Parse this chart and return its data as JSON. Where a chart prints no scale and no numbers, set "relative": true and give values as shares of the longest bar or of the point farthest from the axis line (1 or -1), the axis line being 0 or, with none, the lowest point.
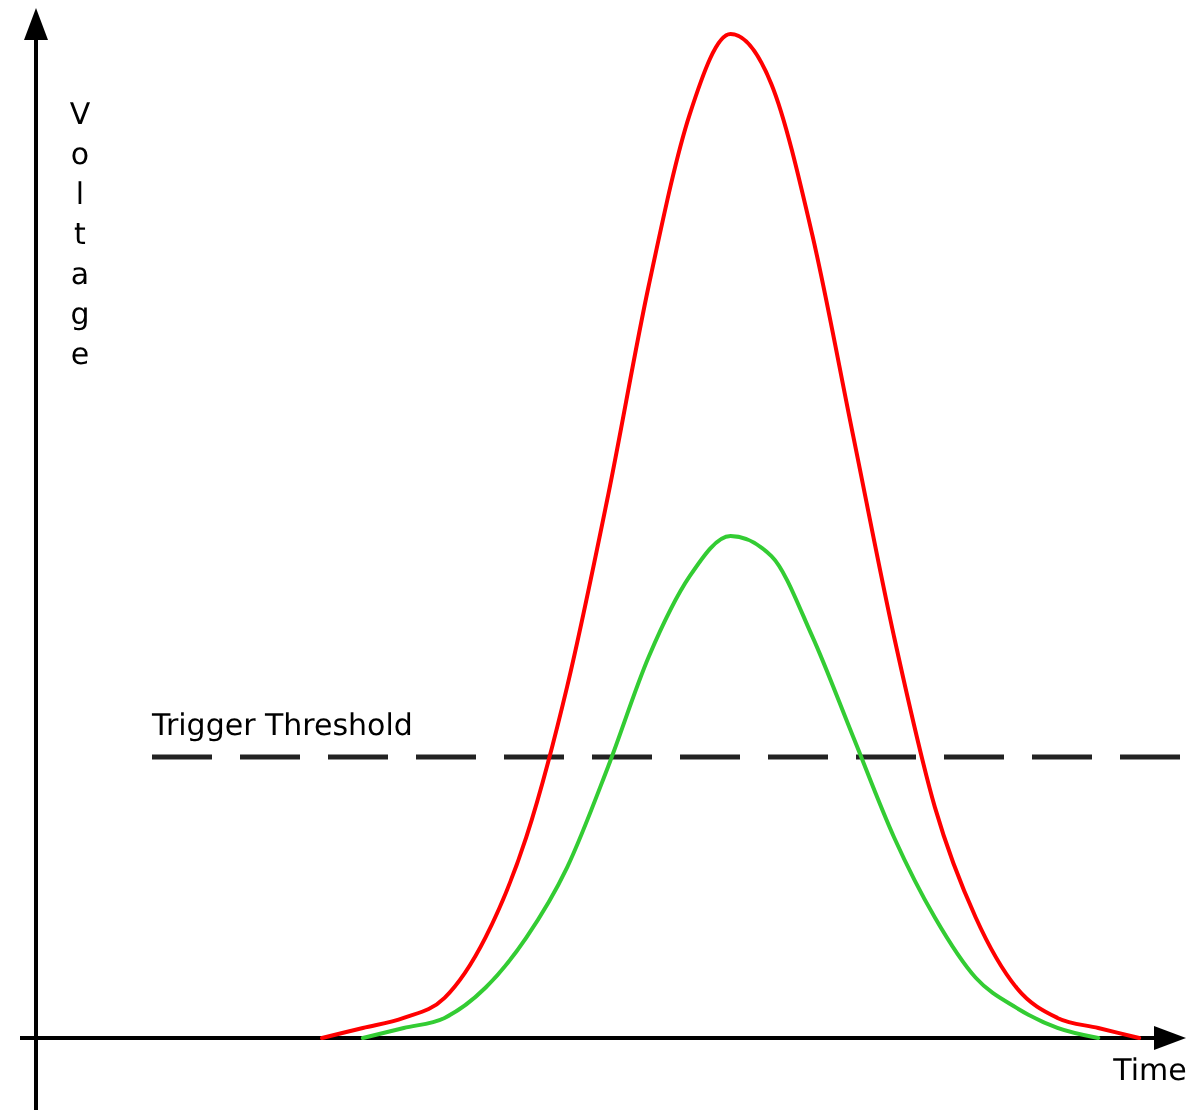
{
  "chart_data": {
    "type": "line",
    "relative": true,
    "xlabel": "Time",
    "ylabel": "Voltage",
    "categories": [
      null,
      null,
      null,
      null,
      null,
      null,
      null,
      null,
      null,
      null,
      null,
      null,
      null,
      null,
      null,
      null,
      null,
      null,
      null,
      null,
      null,
      null,
      null,
      null,
      null,
      null,
      null,
      null,
      null
    ],
    "series": [
      {
        "color": "#ff0000",
        "values": [
          null,
          null,
          null,
          null,
          null,
          null,
          null,
          0,
          0.01,
          0.02,
          0.04,
          0.1,
          0.2,
          0.35,
          0.54,
          0.75,
          0.92,
          1,
          0.95,
          0.8,
          0.6,
          0.4,
          0.23,
          0.12,
          0.05,
          0.02,
          0.01,
          0,
          null
        ]
      },
      {
        "color": "#33cc33",
        "values": [
          null,
          null,
          null,
          null,
          null,
          null,
          null,
          null,
          0,
          0.01,
          0.02,
          0.05,
          0.1,
          0.17,
          0.27,
          0.38,
          0.46,
          0.5,
          0.48,
          0.4,
          0.3,
          0.2,
          0.12,
          0.06,
          0.03,
          0.01,
          0,
          null,
          null
        ]
      }
    ],
    "ref_lines": [
      {
        "axis": "y",
        "value": 0.28,
        "label": "Trigger Threshold",
        "color": "#222222",
        "line_style": "dashed"
      }
    ]
  }
}
